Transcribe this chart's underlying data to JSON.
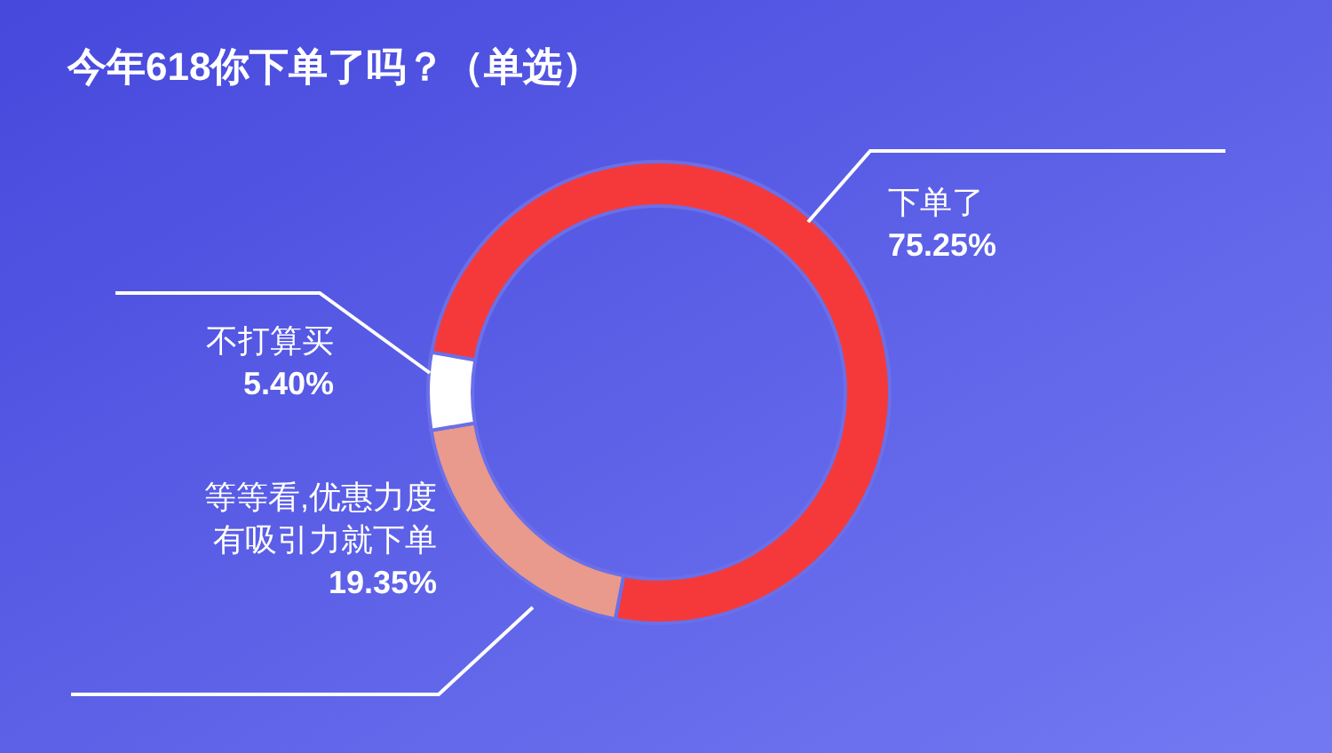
{
  "chart_data": {
    "type": "donut",
    "title": "今年618你下单了吗？（单选）",
    "categories": [
      "下单了",
      "等等看,优惠力度有吸引力就下单",
      "不打算买"
    ],
    "values": [
      75.25,
      19.35,
      5.4
    ],
    "value_labels": [
      "75.25%",
      "19.35%",
      "5.40%"
    ],
    "colors": [
      "#f5393b",
      "#e99a8c",
      "#ffffff"
    ]
  }
}
